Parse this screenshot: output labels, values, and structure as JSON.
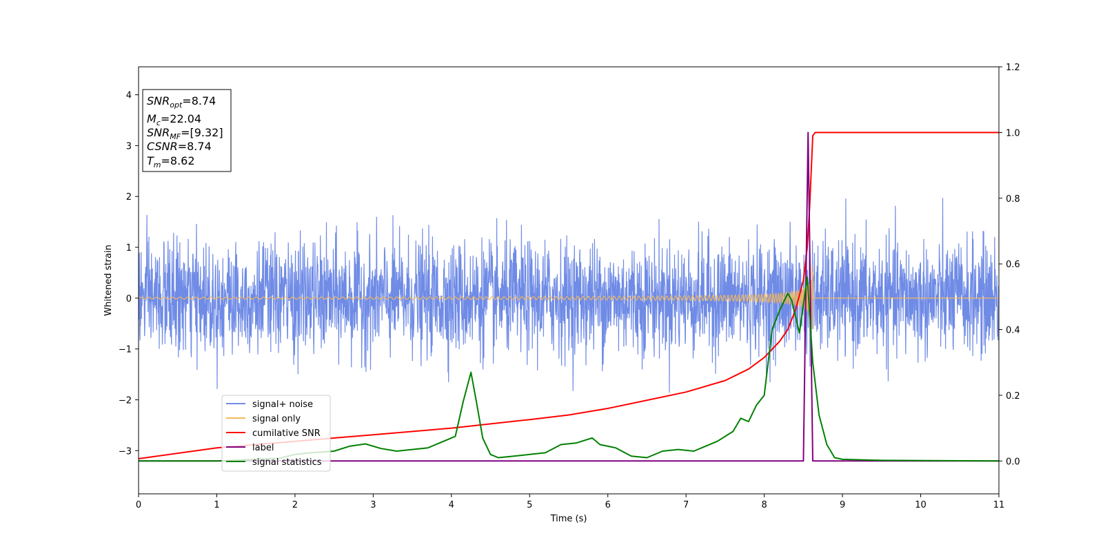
{
  "chart_data": {
    "type": "line",
    "xlabel": "Time (s)",
    "ylabel": "Whitened strain",
    "xlim": [
      0,
      11
    ],
    "ylim": [
      -3.85,
      4.55
    ],
    "y2lim": [
      -0.1,
      1.2
    ],
    "xticks": [
      "0",
      "1",
      "2",
      "3",
      "4",
      "5",
      "6",
      "7",
      "8",
      "9",
      "10",
      "11"
    ],
    "yticks": [
      "−3",
      "−2",
      "−1",
      "0",
      "1",
      "2",
      "3",
      "4"
    ],
    "y2ticks": [
      "0.0",
      "0.2",
      "0.4",
      "0.6",
      "0.8",
      "1.0",
      "1.2"
    ],
    "grid": false,
    "legend_position": "lower-left",
    "annotations": {
      "snr_opt": {
        "base": "SNR",
        "sub": "opt",
        "value": "=8.74"
      },
      "mc": {
        "base": "M",
        "sub": "c",
        "value": "=22.04"
      },
      "snr_mf": {
        "base": "SNR",
        "sub": "MF",
        "value": "=[9.32]"
      },
      "csnr": {
        "base": "CSNR",
        "value": "=8.74"
      },
      "tm": {
        "base": "T",
        "sub": "m",
        "value": "=8.62"
      }
    },
    "series": [
      {
        "name": "signal+ noise",
        "axis": "left",
        "color": "#6f8be6",
        "note_amplitude": {
          "typical_range": [
            -1.6,
            1.5
          ],
          "max": 2.22,
          "min": -2.1
        }
      },
      {
        "name": "signal only",
        "axis": "left",
        "color": "#f5b85a",
        "chirp": {
          "start": 0,
          "merger": 8.62,
          "peak_amplitude": 0.7,
          "end_value": 0
        }
      },
      {
        "name": "cumilative SNR",
        "axis": "right",
        "color": "#ff0000",
        "x": [
          0,
          1,
          2,
          3,
          4,
          5,
          5.5,
          6,
          6.5,
          7,
          7.5,
          7.8,
          8.0,
          8.2,
          8.3,
          8.4,
          8.5,
          8.55,
          8.58,
          8.62,
          8.65,
          11
        ],
        "values": [
          0.007,
          0.04,
          0.06,
          0.08,
          0.1,
          0.126,
          0.14,
          0.16,
          0.185,
          0.21,
          0.245,
          0.28,
          0.315,
          0.365,
          0.4,
          0.46,
          0.55,
          0.65,
          0.77,
          0.99,
          1.0,
          1.0
        ]
      },
      {
        "name": "label",
        "axis": "right",
        "color": "#800080",
        "x": [
          0,
          8.5,
          8.56,
          8.62,
          8.64,
          11
        ],
        "values": [
          0,
          0,
          1.0,
          0,
          0,
          0
        ]
      },
      {
        "name": "signal statistics",
        "axis": "right",
        "color": "#008000",
        "x": [
          0,
          1,
          1.8,
          2.0,
          2.2,
          2.5,
          2.7,
          2.9,
          3.1,
          3.3,
          3.5,
          3.7,
          3.9,
          4.05,
          4.15,
          4.25,
          4.32,
          4.4,
          4.5,
          4.6,
          4.8,
          5.0,
          5.2,
          5.4,
          5.6,
          5.8,
          5.9,
          6.1,
          6.3,
          6.5,
          6.7,
          6.9,
          7.1,
          7.2,
          7.4,
          7.6,
          7.7,
          7.8,
          7.9,
          8.0,
          8.1,
          8.2,
          8.3,
          8.35,
          8.45,
          8.55,
          8.62,
          8.7,
          8.8,
          8.9,
          9.0,
          9.5,
          11
        ],
        "values": [
          0.0,
          0.0,
          0.008,
          0.02,
          0.025,
          0.03,
          0.045,
          0.052,
          0.038,
          0.03,
          0.035,
          0.04,
          0.06,
          0.075,
          0.18,
          0.27,
          0.18,
          0.07,
          0.02,
          0.01,
          0.015,
          0.02,
          0.025,
          0.05,
          0.055,
          0.07,
          0.05,
          0.04,
          0.015,
          0.01,
          0.03,
          0.035,
          0.03,
          0.04,
          0.06,
          0.09,
          0.13,
          0.12,
          0.17,
          0.2,
          0.4,
          0.46,
          0.51,
          0.49,
          0.39,
          0.56,
          0.3,
          0.14,
          0.05,
          0.01,
          0.005,
          0.002,
          0.0
        ]
      }
    ]
  }
}
